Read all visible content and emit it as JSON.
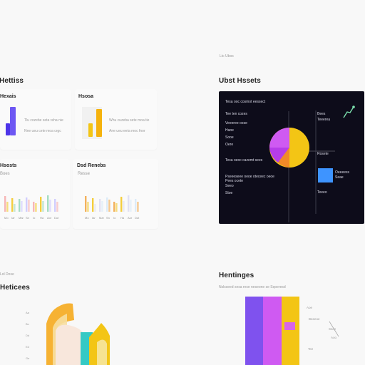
{
  "top_left": {
    "title": "Hettiss",
    "card1": {
      "title": "Hexais",
      "caption": "Tlu cozebe seta reha nie",
      "caption2": "Nne ueu cete moa crgc"
    },
    "card2": {
      "title": "Hsosa",
      "caption": "Whu cuzeba sete moa tie",
      "caption2": "Ane ueu eeta moc fnor"
    },
    "card3": {
      "title": "Hsosts",
      "caption": "Boes",
      "axis": [
        "Mo",
        "Iar",
        "Mar",
        "Sn",
        "Io",
        "Ha",
        "Aor",
        "Dut"
      ]
    },
    "card4": {
      "title": "Dsd Renebs",
      "caption": "Resse",
      "axis": [
        "Mo",
        "Iar",
        "Mar",
        "Sn",
        "Io",
        "Ha",
        "Aor",
        "Dut"
      ]
    }
  },
  "top_right": {
    "header_tiny": "Ltc  Ubos",
    "title": "Ubst Hssets",
    "panel": {
      "left_text": [
        "Tesa ooc cosmot eessect",
        "Tee ten cozes",
        "Veeeree oose",
        "Haoe",
        "Sooe",
        "Oere",
        "Tesa oeoc cazemt sees",
        "Pseeeseee oeoe oteceec oeoe",
        "Pees ocete",
        "Seeo",
        "Stoe"
      ],
      "right_text": [
        "Bees",
        "Teeerea",
        "Rosete",
        "Oeeeess",
        "Seae",
        "Teeeo"
      ]
    }
  },
  "bottom_left": {
    "header_tiny": "Lol  Dose",
    "title": "Heticees",
    "axis": [
      "Aa",
      "Bc",
      "Dd",
      "Ed",
      "Ge"
    ]
  },
  "bottom_right": {
    "title": "Hentinges",
    "caption": "Nslsseed sesa rese  neseone  se  Sqoeresd",
    "labels": [
      "Aoe",
      "Beeeoe",
      "Ssee",
      "Aoo",
      "Tee"
    ]
  },
  "colors": {
    "purple": "#6a4df0",
    "magenta": "#cf5af2",
    "orange": "#f4a63a",
    "yellow": "#f3c515",
    "blue": "#3e94ff",
    "mint": "#7de3b0",
    "cyan": "#39c9c9",
    "dark": "#0d0c1a"
  },
  "icons": {
    "chart_icon": "sparkline-icon",
    "legend_square": "legend-square-icon"
  }
}
